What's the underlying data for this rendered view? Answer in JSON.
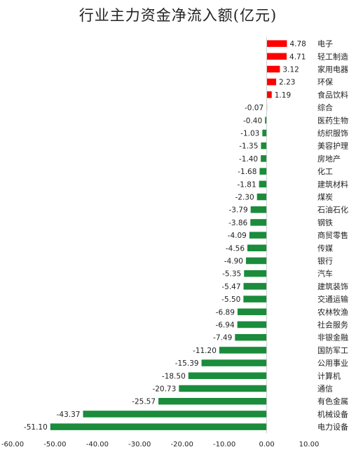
{
  "chart_data": {
    "type": "bar",
    "orientation": "horizontal",
    "title": "行业主力资金净流入额(亿元)",
    "xlabel": "",
    "ylabel": "",
    "xlim": [
      -60,
      10
    ],
    "xticks": [
      "-60.00",
      "-50.00",
      "-40.00",
      "-30.00",
      "-20.00",
      "-10.00",
      "0.00",
      "10.00"
    ],
    "grid": false,
    "categories": [
      "电子",
      "轻工制造",
      "家用电器",
      "环保",
      "食品饮料",
      "综合",
      "医药生物",
      "纺织服饰",
      "美容护理",
      "房地产",
      "化工",
      "建筑材料",
      "煤炭",
      "石油石化",
      "钢铁",
      "商贸零售",
      "传媒",
      "银行",
      "汽车",
      "建筑装饰",
      "交通运输",
      "农林牧渔",
      "社会服务",
      "非银金融",
      "国防军工",
      "公用事业",
      "计算机",
      "通信",
      "有色金属",
      "机械设备",
      "电力设备"
    ],
    "values": [
      4.78,
      4.71,
      3.12,
      2.23,
      1.19,
      -0.07,
      -0.4,
      -1.03,
      -1.35,
      -1.4,
      -1.68,
      -1.81,
      -2.3,
      -3.79,
      -3.86,
      -4.09,
      -4.56,
      -4.9,
      -5.35,
      -5.47,
      -5.5,
      -6.89,
      -6.94,
      -7.49,
      -11.2,
      -15.39,
      -18.5,
      -20.73,
      -25.57,
      -43.37,
      -51.1
    ],
    "value_labels": [
      "4.78",
      "4.71",
      "3.12",
      "2.23",
      "1.19",
      "-0.07",
      "-0.40",
      "-1.03",
      "-1.35",
      "-1.40",
      "-1.68",
      "-1.81",
      "-2.30",
      "-3.79",
      "-3.86",
      "-4.09",
      "-4.56",
      "-4.90",
      "-5.35",
      "-5.47",
      "-5.50",
      "-6.89",
      "-6.94",
      "-7.49",
      "-11.20",
      "-15.39",
      "-18.50",
      "-20.73",
      "-25.57",
      "-43.37",
      "-51.10"
    ],
    "colors": {
      "positive": "#ff0000",
      "negative": "#1a8c3c",
      "axis": "#333333"
    }
  }
}
